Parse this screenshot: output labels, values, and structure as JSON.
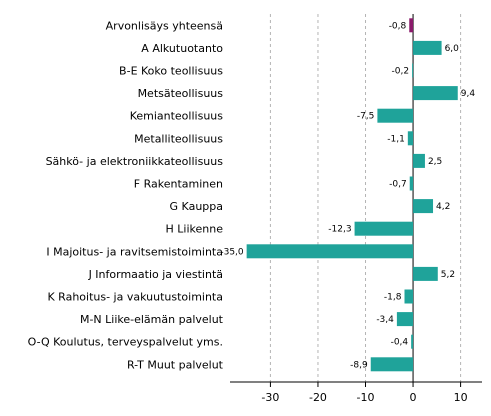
{
  "chart_data": {
    "type": "bar",
    "orientation": "horizontal",
    "categories": [
      "Arvonlisäys yhteensä",
      "A Alkutuotanto",
      "B-E Koko teollisuus",
      "Metsäteollisuus",
      "Kemianteollisuus",
      "Metalliteollisuus",
      "Sähkö- ja elektroniikkateollisuus",
      "F Rakentaminen",
      "G Kauppa",
      "H Liikenne",
      "I Majoitus- ja ravitsemistoiminta",
      "J Informaatio ja viestintä",
      "K Rahoitus- ja vakuutustoiminta",
      "M-N Liike-elämän palvelut",
      "O-Q Koulutus, terveyspalvelut yms.",
      "R-T Muut palvelut"
    ],
    "values": [
      -0.8,
      6.0,
      -0.2,
      9.4,
      -7.5,
      -1.1,
      2.5,
      -0.7,
      4.2,
      -12.3,
      -35.0,
      5.2,
      -1.8,
      -3.4,
      -0.4,
      -8.9
    ],
    "value_labels": [
      "-0,8",
      "6,0",
      "-0,2",
      "9,4",
      "-7,5",
      "-1,1",
      "2,5",
      "-0,7",
      "4,2",
      "-12,3",
      "-35,0",
      "5,2",
      "-1,8",
      "-3,4",
      "-0,4",
      "-8,9"
    ],
    "colors": [
      "#8b1a6b",
      "#1fa39a",
      "#1fa39a",
      "#1fa39a",
      "#1fa39a",
      "#1fa39a",
      "#1fa39a",
      "#1fa39a",
      "#1fa39a",
      "#1fa39a",
      "#1fa39a",
      "#1fa39a",
      "#1fa39a",
      "#1fa39a",
      "#1fa39a",
      "#1fa39a"
    ],
    "xticks": [
      -30,
      -20,
      -10,
      0,
      10
    ],
    "xtick_labels": [
      "-30",
      "-20",
      "-10",
      "0",
      "10"
    ],
    "xlim": [
      -38.5,
      14.5
    ],
    "grid": true,
    "title": "",
    "xlabel": "",
    "ylabel": ""
  }
}
